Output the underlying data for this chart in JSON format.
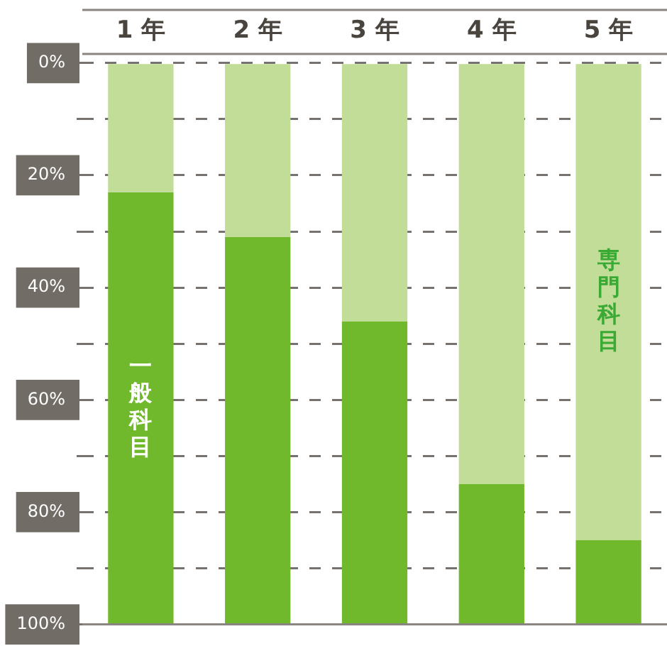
{
  "chart_data": {
    "type": "bar",
    "stacked": true,
    "categories": [
      "1 年",
      "2 年",
      "3 年",
      "4 年",
      "5 年"
    ],
    "series": [
      {
        "name": "専門科目",
        "color": "#c1dd98",
        "values": [
          23,
          31,
          46,
          75,
          85
        ]
      },
      {
        "name": "一般科目",
        "color": "#70b82c",
        "values": [
          77,
          69,
          54,
          25,
          15
        ]
      }
    ],
    "ylim": [
      100,
      0
    ],
    "yticks": [
      {
        "value": 0,
        "label": "0%"
      },
      {
        "value": 10,
        "label": null
      },
      {
        "value": 20,
        "label": "20%"
      },
      {
        "value": 30,
        "label": null
      },
      {
        "value": 40,
        "label": "40%"
      },
      {
        "value": 50,
        "label": null
      },
      {
        "value": 60,
        "label": "60%"
      },
      {
        "value": 70,
        "label": null
      },
      {
        "value": 80,
        "label": "80%"
      },
      {
        "value": 90,
        "label": null
      },
      {
        "value": 100,
        "label": "100%"
      }
    ],
    "grid": "y",
    "legend": false
  }
}
